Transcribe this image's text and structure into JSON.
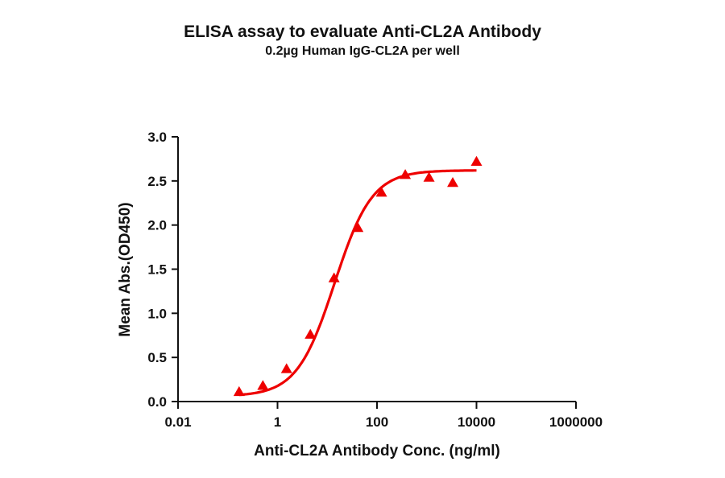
{
  "title": "ELISA assay to evaluate Anti-CL2A Antibody",
  "subtitle": "0.2µg Human IgG-CL2A per well",
  "colors": {
    "series": "#ee0000",
    "axis": "#111111"
  },
  "chart_data": {
    "type": "scatter",
    "title": "ELISA assay to evaluate Anti-CL2A Antibody",
    "subtitle": "0.2µg Human IgG-CL2A per well",
    "xlabel": "Anti-CL2A Antibody Conc. (ng/ml)",
    "ylabel": "Mean Abs.(OD450)",
    "xscale": "log",
    "xlim": [
      0.01,
      1000000
    ],
    "ylim": [
      0,
      3.0
    ],
    "xticks": [
      "0.01",
      "1",
      "100",
      "10000",
      "1000000"
    ],
    "yticks": [
      "0.0",
      "0.5",
      "1.0",
      "1.5",
      "2.0",
      "2.5",
      "3.0"
    ],
    "grid": false,
    "legend": null,
    "fit": "4-parameter logistic curve (red line)",
    "series": [
      {
        "name": "Anti-CL2A Antibody",
        "marker": "triangle",
        "color": "#ee0000",
        "x": [
          0.169,
          0.508,
          1.52,
          4.57,
          13.7,
          41.2,
          123,
          370,
          1111,
          3333,
          10000
        ],
        "y": [
          0.11,
          0.18,
          0.37,
          0.76,
          1.4,
          1.97,
          2.37,
          2.57,
          2.54,
          2.48,
          2.72
        ]
      }
    ]
  }
}
